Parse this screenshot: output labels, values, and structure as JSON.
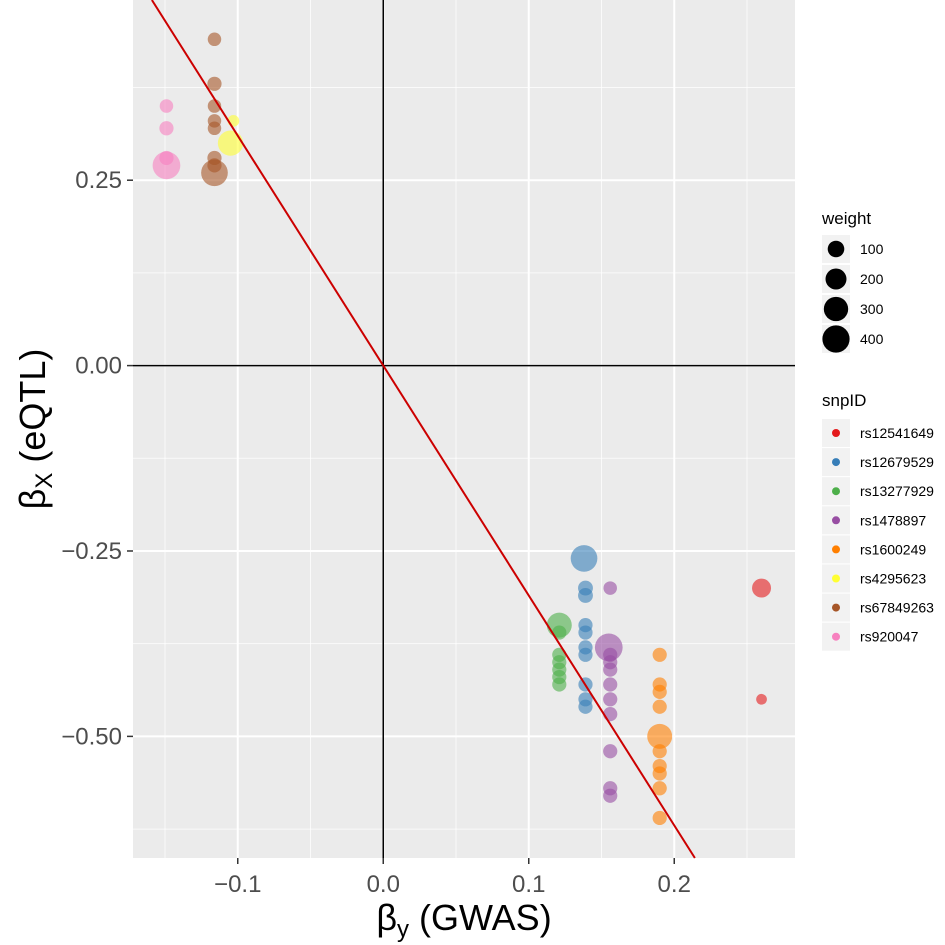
{
  "chart_data": {
    "type": "scatter",
    "xlabel": {
      "symbol": "β",
      "subscript": "y",
      "text": " (GWAS)"
    },
    "ylabel": {
      "symbol": "β",
      "subscript": "X",
      "text": " (eQTL)"
    },
    "xlim": [
      -0.172,
      0.283
    ],
    "ylim": [
      -0.664,
      0.493
    ],
    "x_ticks": [
      -0.1,
      0.0,
      0.1,
      0.2
    ],
    "x_tick_labels": [
      "−0.1",
      "0.0",
      "0.1",
      "0.2"
    ],
    "y_ticks": [
      -0.5,
      -0.25,
      0.0,
      0.25
    ],
    "y_tick_labels": [
      "−0.50",
      "−0.25",
      "0.00",
      "0.25"
    ],
    "grid": true,
    "reference_lines": {
      "horizontal_at": 0,
      "vertical_at": 0
    },
    "fit_line": {
      "slope": -3.1,
      "intercept": 0,
      "color": "#CC0000"
    },
    "legend_weight": {
      "title": "weight",
      "entries": [
        {
          "label": "100",
          "value": 100
        },
        {
          "label": "200",
          "value": 200
        },
        {
          "label": "300",
          "value": 300
        },
        {
          "label": "400",
          "value": 400
        }
      ]
    },
    "legend_snp": {
      "title": "snpID",
      "entries": [
        {
          "label": "rs12541649",
          "color": "#E41A1C"
        },
        {
          "label": "rs12679529",
          "color": "#377EB8"
        },
        {
          "label": "rs13277929",
          "color": "#4DAF4A"
        },
        {
          "label": "rs1478897",
          "color": "#984EA3"
        },
        {
          "label": "rs1600249",
          "color": "#FF7F00"
        },
        {
          "label": "rs4295623",
          "color": "#FFFF33"
        },
        {
          "label": "rs67849263",
          "color": "#A65628"
        },
        {
          "label": "rs920047",
          "color": "#F781BF"
        }
      ]
    },
    "series": [
      {
        "name": "rs12541649",
        "points": [
          {
            "x": 0.26,
            "y": -0.3,
            "w": 150
          },
          {
            "x": 0.26,
            "y": -0.45,
            "w": 20
          }
        ]
      },
      {
        "name": "rs12679529",
        "points": [
          {
            "x": 0.138,
            "y": -0.26,
            "w": 380
          },
          {
            "x": 0.139,
            "y": -0.3,
            "w": 70
          },
          {
            "x": 0.139,
            "y": -0.31,
            "w": 70
          },
          {
            "x": 0.139,
            "y": -0.35,
            "w": 60
          },
          {
            "x": 0.139,
            "y": -0.36,
            "w": 60
          },
          {
            "x": 0.139,
            "y": -0.38,
            "w": 60
          },
          {
            "x": 0.139,
            "y": -0.39,
            "w": 60
          },
          {
            "x": 0.139,
            "y": -0.43,
            "w": 60
          },
          {
            "x": 0.139,
            "y": -0.45,
            "w": 60
          },
          {
            "x": 0.139,
            "y": -0.46,
            "w": 60
          }
        ]
      },
      {
        "name": "rs13277929",
        "points": [
          {
            "x": 0.121,
            "y": -0.35,
            "w": 320
          },
          {
            "x": 0.121,
            "y": -0.36,
            "w": 60
          },
          {
            "x": 0.121,
            "y": -0.39,
            "w": 60
          },
          {
            "x": 0.121,
            "y": -0.4,
            "w": 60
          },
          {
            "x": 0.121,
            "y": -0.41,
            "w": 60
          },
          {
            "x": 0.121,
            "y": -0.42,
            "w": 60
          },
          {
            "x": 0.121,
            "y": -0.43,
            "w": 60
          }
        ]
      },
      {
        "name": "rs1478897",
        "points": [
          {
            "x": 0.156,
            "y": -0.3,
            "w": 50
          },
          {
            "x": 0.155,
            "y": -0.38,
            "w": 420
          },
          {
            "x": 0.156,
            "y": -0.39,
            "w": 60
          },
          {
            "x": 0.156,
            "y": -0.4,
            "w": 60
          },
          {
            "x": 0.156,
            "y": -0.41,
            "w": 60
          },
          {
            "x": 0.156,
            "y": -0.43,
            "w": 60
          },
          {
            "x": 0.156,
            "y": -0.45,
            "w": 60
          },
          {
            "x": 0.156,
            "y": -0.47,
            "w": 60
          },
          {
            "x": 0.156,
            "y": -0.52,
            "w": 60
          },
          {
            "x": 0.156,
            "y": -0.57,
            "w": 60
          },
          {
            "x": 0.156,
            "y": -0.58,
            "w": 60
          }
        ]
      },
      {
        "name": "rs1600249",
        "points": [
          {
            "x": 0.19,
            "y": -0.39,
            "w": 60
          },
          {
            "x": 0.19,
            "y": -0.43,
            "w": 60
          },
          {
            "x": 0.19,
            "y": -0.44,
            "w": 60
          },
          {
            "x": 0.19,
            "y": -0.46,
            "w": 60
          },
          {
            "x": 0.19,
            "y": -0.5,
            "w": 320
          },
          {
            "x": 0.19,
            "y": -0.52,
            "w": 60
          },
          {
            "x": 0.19,
            "y": -0.54,
            "w": 60
          },
          {
            "x": 0.19,
            "y": -0.55,
            "w": 60
          },
          {
            "x": 0.19,
            "y": -0.57,
            "w": 60
          },
          {
            "x": 0.19,
            "y": -0.61,
            "w": 60
          }
        ]
      },
      {
        "name": "rs4295623",
        "points": [
          {
            "x": -0.105,
            "y": 0.3,
            "w": 330
          },
          {
            "x": -0.103,
            "y": 0.33,
            "w": 30
          }
        ]
      },
      {
        "name": "rs67849263",
        "points": [
          {
            "x": -0.116,
            "y": 0.44,
            "w": 50
          },
          {
            "x": -0.116,
            "y": 0.38,
            "w": 60
          },
          {
            "x": -0.116,
            "y": 0.35,
            "w": 50
          },
          {
            "x": -0.116,
            "y": 0.33,
            "w": 50
          },
          {
            "x": -0.116,
            "y": 0.32,
            "w": 50
          },
          {
            "x": -0.116,
            "y": 0.28,
            "w": 60
          },
          {
            "x": -0.116,
            "y": 0.27,
            "w": 60
          },
          {
            "x": -0.116,
            "y": 0.26,
            "w": 380
          }
        ]
      },
      {
        "name": "rs920047",
        "points": [
          {
            "x": -0.149,
            "y": 0.35,
            "w": 50
          },
          {
            "x": -0.149,
            "y": 0.32,
            "w": 60
          },
          {
            "x": -0.149,
            "y": 0.28,
            "w": 60
          },
          {
            "x": -0.149,
            "y": 0.27,
            "w": 420
          }
        ]
      }
    ]
  }
}
